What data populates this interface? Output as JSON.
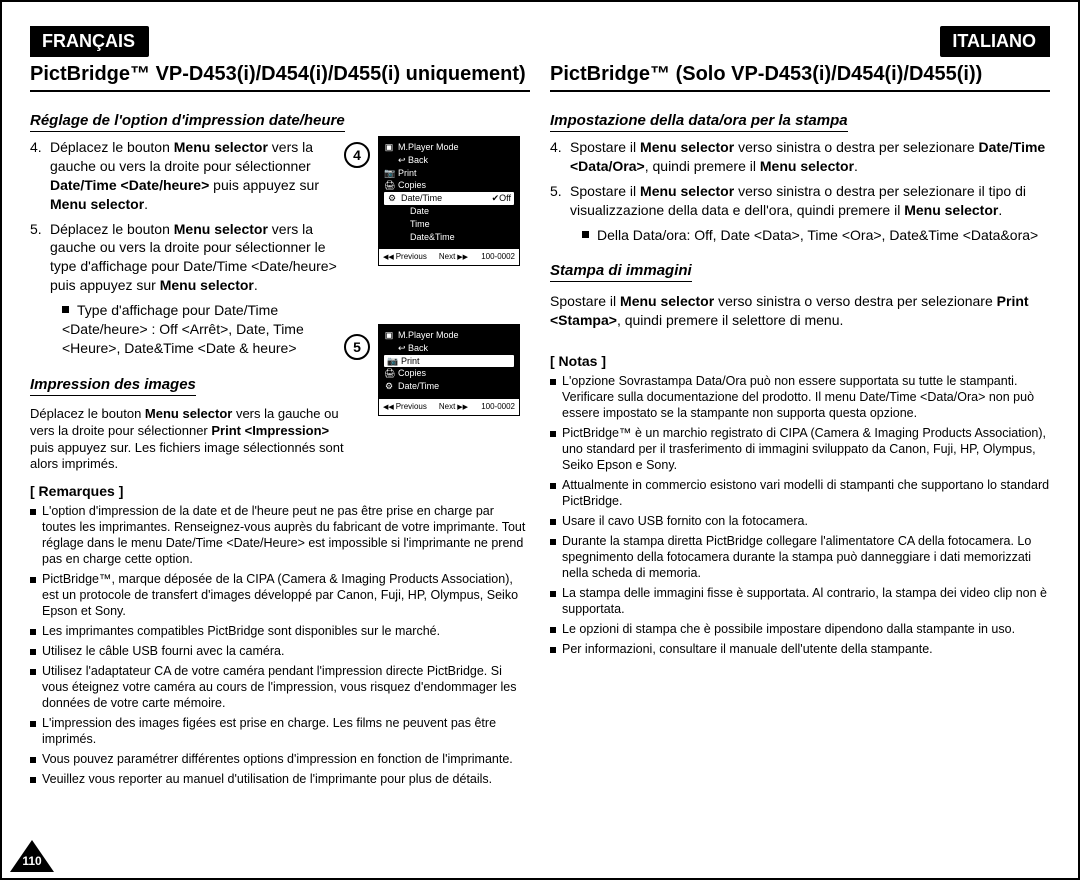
{
  "page_number": "110",
  "left": {
    "lang": "FRANÇAIS",
    "title": "PictBridge™ VP-D453(i)/D454(i)/D455(i) uniquement)",
    "h_datetime": "Réglage de l'option d'impression date/heure",
    "step4": "Déplacez le bouton <b>Menu selector</b> vers la gauche ou vers la droite pour sélectionner <b>Date/Time &lt;Date/heure&gt;</b> puis appuyez sur <b>Menu selector</b>.",
    "step5": "Déplacez le bouton <b>Menu selector</b> vers la gauche ou vers la droite pour sélectionner le type d'affichage pour Date/Time &lt;Date/heure&gt; puis appuyez sur <b>Menu selector</b>.",
    "step5_sub": "Type d'affichage pour Date/Time &lt;Date/heure&gt; : Off &lt;Arrêt&gt;, Date, Time &lt;Heure&gt;, Date&Time &lt;Date & heure&gt;",
    "h_print": "Impression des images",
    "print_body": "Déplacez le bouton <b>Menu selector</b> vers la gauche ou vers la droite pour sélectionner <b>Print &lt;Impression&gt;</b> puis appuyez sur. Les fichiers image sélectionnés sont alors imprimés.",
    "h_notes": "[ Remarques ]",
    "notes": [
      "L'option d'impression de la date et de l'heure peut ne pas être prise en charge par toutes les imprimantes. Renseignez-vous auprès du fabricant de votre imprimante. Tout réglage dans le menu Date/Time <Date/Heure> est impossible si l'imprimante ne prend pas en charge cette option.",
      "PictBridge™, marque déposée de la CIPA (Camera & Imaging Products Association), est un protocole de transfert d'images développé par Canon, Fuji, HP, Olympus, Seiko Epson et Sony.",
      "Les imprimantes compatibles PictBridge sont disponibles sur le marché.",
      "Utilisez le câble USB fourni avec la caméra.",
      "Utilisez l'adaptateur CA de votre caméra pendant l'impression directe PictBridge. Si vous éteignez votre caméra au cours de l'impression, vous risquez d'endommager les données de votre carte mémoire.",
      "L'impression des images figées est prise en charge. Les films ne peuvent pas être imprimés.",
      "Vous pouvez paramétrer différentes options d'impression en fonction de l'imprimante.",
      "Veuillez vous reporter au manuel d'utilisation de l'imprimante pour plus de détails."
    ]
  },
  "right": {
    "lang": "ITALIANO",
    "title": "PictBridge™ (Solo VP-D453(i)/D454(i)/D455(i))",
    "h_datetime": "Impostazione della data/ora per la stampa",
    "step4": "Spostare il <b>Menu selector</b> verso sinistra o destra per selezionare <b>Date/Time &lt;Data/Ora&gt;</b>, quindi premere il <b>Menu selector</b>.",
    "step5": "Spostare il <b>Menu selector</b> verso sinistra o destra per selezionare il tipo di visualizzazione della data e dell'ora, quindi premere il <b>Menu selector</b>.",
    "step5_sub": "Della Data/ora: Off, Date &lt;Data&gt;, Time &lt;Ora&gt;, Date&Time &lt;Data&ora&gt;",
    "h_print": "Stampa di immagini",
    "print_body": "Spostare il <b>Menu selector</b> verso sinistra o verso destra per selezionare <b>Print &lt;Stampa&gt;</b>, quindi premere il selettore di menu.",
    "h_notes": "[ Notas ]",
    "notes": [
      "L'opzione Sovrastampa Data/Ora può non essere supportata su tutte le stampanti. Verificare sulla documentazione del prodotto. Il menu Date/Time <Data/Ora> non può essere impostato se la stampante non supporta questa opzione.",
      "PictBridge™ è un marchio registrato di CIPA (Camera & Imaging Products Association), uno standard per il trasferimento di immagini sviluppato da Canon, Fuji, HP, Olympus, Seiko Epson e Sony.",
      "Attualmente in commercio esistono vari modelli di stampanti che supportano lo standard PictBridge.",
      "Usare il cavo USB fornito con la fotocamera.",
      "Durante la stampa diretta PictBridge collegare l'alimentatore CA della fotocamera. Lo spegnimento della fotocamera durante la stampa può danneggiare i dati memorizzati nella scheda di memoria.",
      "La stampa delle immagini fisse è supportata. Al contrario, la stampa dei video clip non è supportata.",
      "Le opzioni di stampa che è possibile impostare dipendono dalla stampante in uso.",
      "Per informazioni, consultare il manuale dell'utente della stampante."
    ]
  },
  "lcd": {
    "mode": "M.Player Mode",
    "back": "Back",
    "print": "Print",
    "copies": "Copies",
    "datetime": "Date/Time",
    "off": "Off",
    "date": "Date",
    "time": "Time",
    "dateandtime": "Date&Time",
    "prev": "Previous",
    "next": "Next",
    "counter": "100-0002"
  }
}
